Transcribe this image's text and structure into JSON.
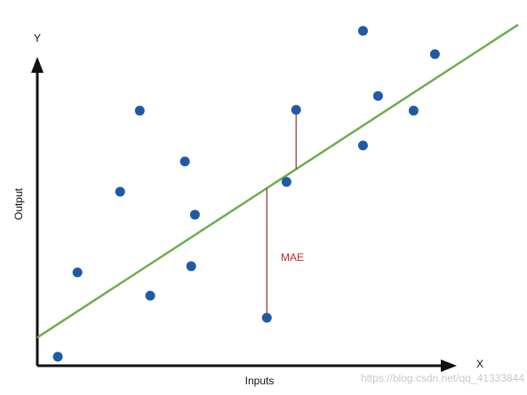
{
  "chart_data": {
    "type": "scatter",
    "x_axis_name": "X",
    "y_axis_name": "Y",
    "x_label": "Inputs",
    "y_label": "Output",
    "annotation": "MAE",
    "x": [
      4.9,
      9.6,
      19.8,
      24.5,
      27.0,
      35.3,
      37.7,
      36.8,
      54.9,
      59.6,
      61.9,
      77.9,
      81.5,
      77.9,
      90.0,
      95.1
    ],
    "y": [
      2.2,
      22.8,
      42.5,
      62.3,
      17.1,
      49.9,
      36.9,
      24.3,
      11.7,
      44.9,
      62.5,
      81.8,
      65.9,
      53.8,
      62.3,
      76.1
    ],
    "color": "#1f5aa6",
    "fit_line": {
      "x": [
        0,
        115
      ],
      "y": [
        6.9,
        83.3
      ],
      "color": "#6ab04c"
    },
    "residuals": [
      {
        "x": 54.9,
        "y_from": 11.7,
        "y_to": 43.4
      },
      {
        "x": 61.9,
        "y_from": 62.5,
        "y_to": 48.0
      }
    ],
    "residual_color": "#9b2a2a",
    "annotation_color": "#c0272d",
    "xlim": [
      0,
      115
    ],
    "ylim": [
      0,
      85
    ]
  },
  "watermark": "https://blog.csdn.net/qq_41333844"
}
